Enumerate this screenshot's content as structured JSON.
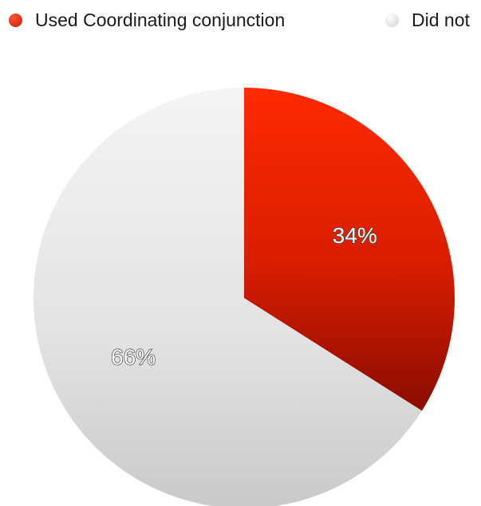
{
  "chart_data": {
    "type": "pie",
    "categories": [
      "Used Coordinating conjunction",
      "Did not"
    ],
    "values": [
      34,
      66
    ],
    "data_labels": [
      "34%",
      "66%"
    ],
    "colors": [
      "#e62208",
      "#e4e4e4"
    ],
    "legend": "top",
    "title": ""
  }
}
